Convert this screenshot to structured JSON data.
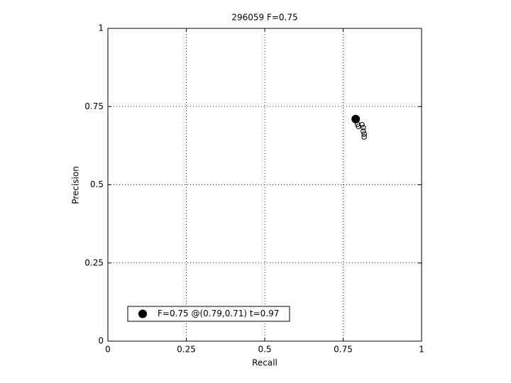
{
  "chart_data": {
    "type": "scatter",
    "title": "296059 F=0.75",
    "xlabel": "Recall",
    "ylabel": "Precision",
    "xlim": [
      0,
      1
    ],
    "ylim": [
      0,
      1
    ],
    "xticks": [
      0,
      0.25,
      0.5,
      0.75,
      1
    ],
    "yticks": [
      0,
      0.25,
      0.5,
      0.75,
      1
    ],
    "grid": true,
    "legend": "lower left",
    "series": [
      {
        "name": "F=0.75 @(0.79,0.71) t=0.97",
        "color": "#000000",
        "marker": "filled",
        "x": [
          0.79
        ],
        "y": [
          0.71
        ]
      },
      {
        "color": "#000000",
        "marker": "open",
        "x": [
          0.79,
          0.796,
          0.799,
          0.81,
          0.814,
          0.814,
          0.817,
          0.817
        ],
        "y": [
          0.705,
          0.694,
          0.687,
          0.692,
          0.683,
          0.671,
          0.662,
          0.653
        ]
      }
    ]
  }
}
